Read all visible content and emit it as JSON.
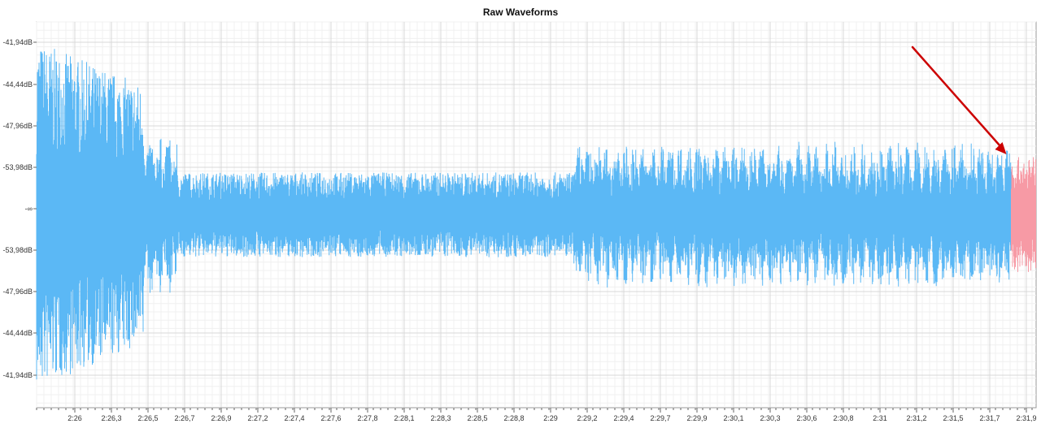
{
  "chart_data": {
    "type": "line",
    "title": "Raw Waveforms",
    "xlabel": "",
    "ylabel": "",
    "x_tick_labels": [
      "2:26",
      "2:26,3",
      "2:26,5",
      "2:26,7",
      "2:26,9",
      "2:27,2",
      "2:27,4",
      "2:27,6",
      "2:27,8",
      "2:28,1",
      "2:28,3",
      "2:28,5",
      "2:28,8",
      "2:29",
      "2:29,2",
      "2:29,4",
      "2:29,7",
      "2:29,9",
      "2:30,1",
      "2:30,3",
      "2:30,6",
      "2:30,8",
      "2:31",
      "2:31,2",
      "2:31,5",
      "2:31,7",
      "2:31,9"
    ],
    "y_tick_labels": [
      "-41,94dB",
      "-44,44dB",
      "-47,96dB",
      "-53,98dB",
      "-∞",
      "-53,98dB",
      "-47,96dB",
      "-44,44dB",
      "-41,94dB"
    ],
    "xlim_seconds": [
      145.9,
      151.95
    ],
    "grid": true,
    "series": [
      {
        "color": "#5bb8f5",
        "segments": [
          {
            "x_start": 145.9,
            "x_end": 146.55,
            "amplitude": 0.9
          },
          {
            "x_start": 146.55,
            "x_end": 146.75,
            "amplitude": 0.42
          },
          {
            "x_start": 146.75,
            "x_end": 149.15,
            "amplitude": 0.22
          },
          {
            "x_start": 149.15,
            "x_end": 151.8,
            "amplitude": 0.38
          }
        ]
      },
      {
        "color": "#f79aa5",
        "segments": [
          {
            "x_start": 151.8,
            "x_end": 151.95,
            "amplitude": 0.3
          }
        ]
      }
    ],
    "annotations": [
      {
        "type": "arrow",
        "color": "#cc0000",
        "points_to_x": 151.8
      }
    ]
  }
}
